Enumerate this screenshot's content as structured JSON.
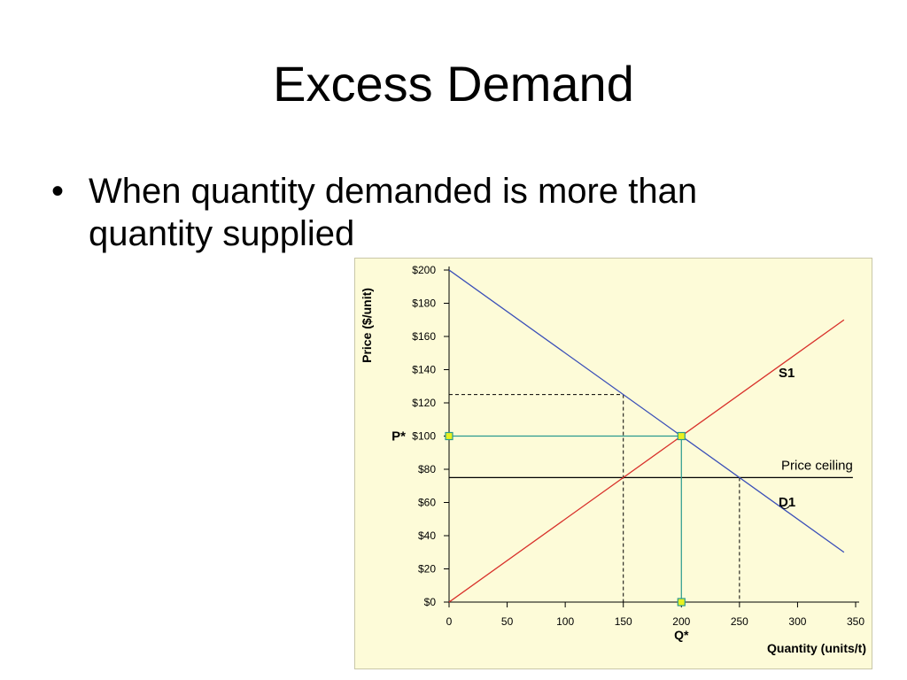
{
  "slide": {
    "title": "Excess Demand",
    "bullet_marker": "•",
    "bullet_text": "When quantity demanded is more than quantity supplied"
  },
  "chart_data": {
    "type": "line",
    "xlabel": "Quantity (units/t)",
    "ylabel": "Price ($/unit)",
    "xlim": [
      0,
      350
    ],
    "ylim": [
      0,
      200
    ],
    "x_ticks": [
      0,
      50,
      100,
      150,
      200,
      250,
      300,
      350
    ],
    "x_tick_labels": [
      "0",
      "50",
      "100",
      "150",
      "200",
      "250",
      "300",
      "350"
    ],
    "y_ticks": [
      0,
      20,
      40,
      60,
      80,
      100,
      120,
      140,
      160,
      180,
      200
    ],
    "y_tick_labels": [
      "$0",
      "$20",
      "$40",
      "$60",
      "$80",
      "$100",
      "$120",
      "$140",
      "$160",
      "$180",
      "$200"
    ],
    "grid": false,
    "series": [
      {
        "name": "S1",
        "color": "#d8302a",
        "x": [
          0,
          340
        ],
        "y": [
          0,
          170
        ]
      },
      {
        "name": "D1",
        "color": "#3a4fb8",
        "x": [
          0,
          340
        ],
        "y": [
          200,
          30
        ]
      }
    ],
    "price_ceiling": {
      "label": "Price ceiling",
      "y": 75,
      "x_range": [
        0,
        340
      ],
      "color": "#000000"
    },
    "equilibrium": {
      "x": 200,
      "y": 100,
      "price_label": "P*",
      "quantity_label": "Q*",
      "color": "#2a9a8e"
    },
    "quantity_supplied_at_ceiling": 150,
    "quantity_demanded_at_ceiling": 250,
    "demand_price_at_supplied_quantity": 125
  },
  "colors": {
    "chart_background": "#fdfbd8",
    "marker_fill": "#e8f020",
    "marker_stroke": "#2a9a8e"
  }
}
